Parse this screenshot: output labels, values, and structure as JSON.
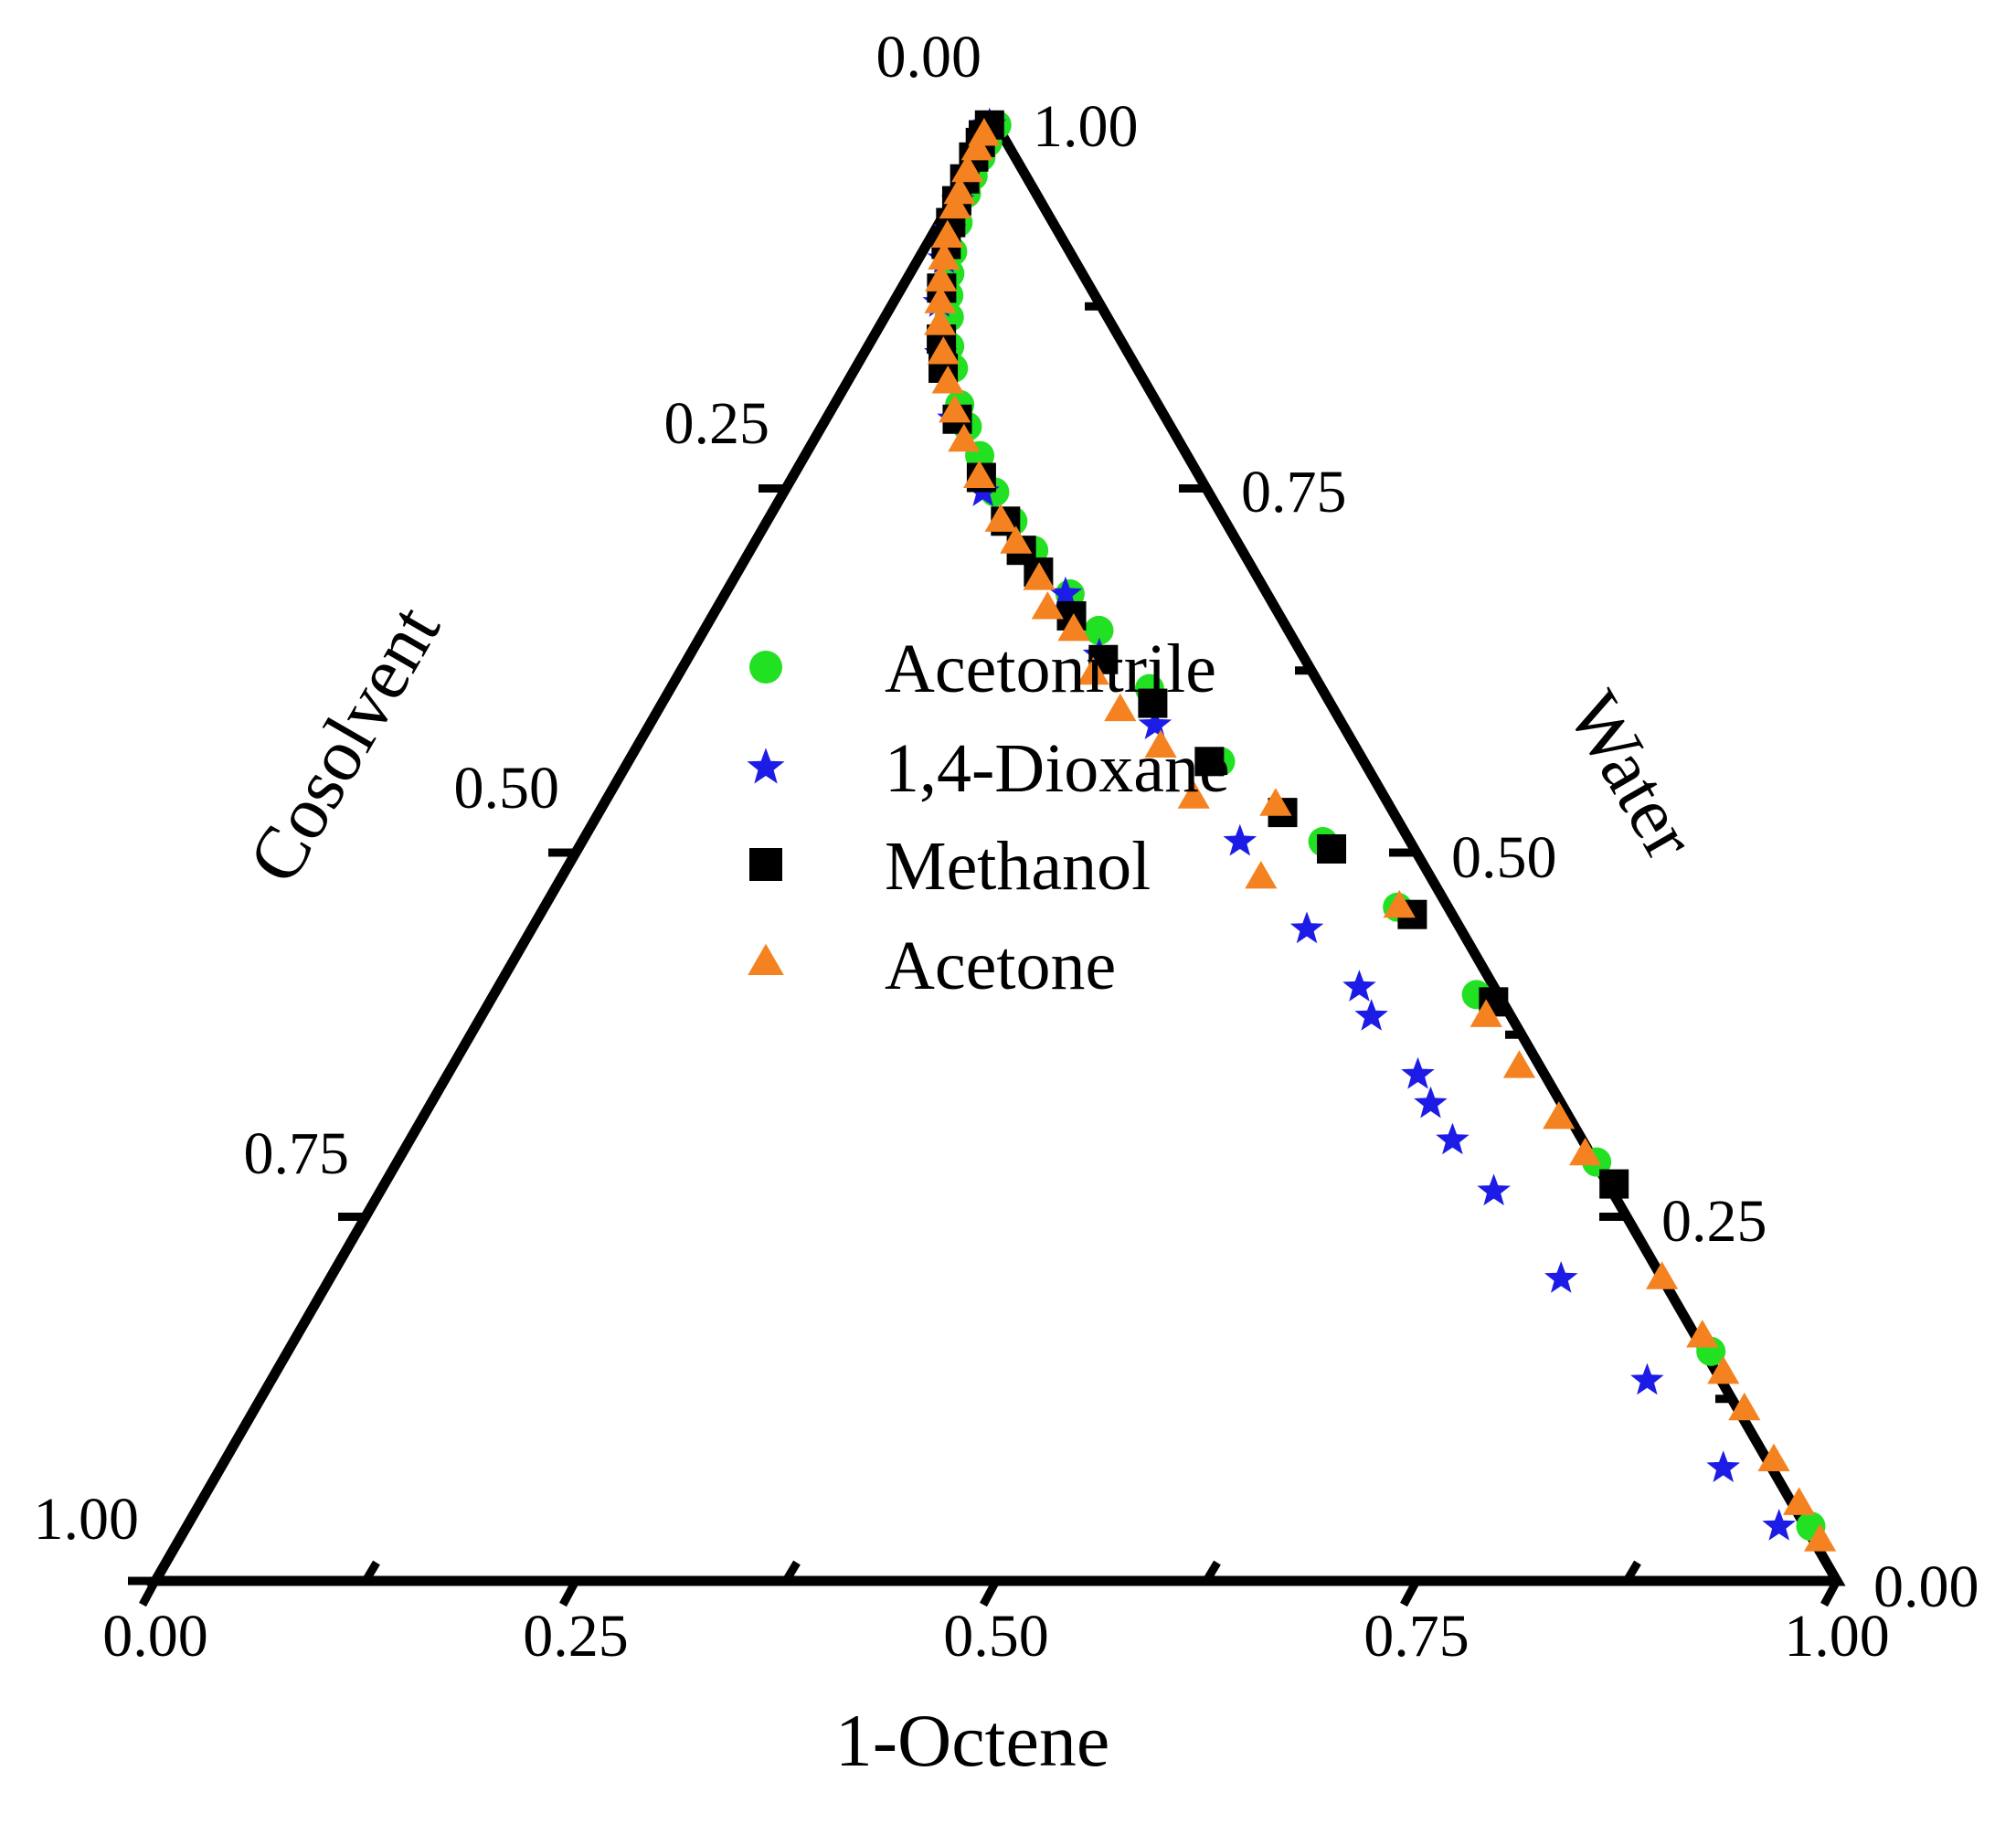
{
  "chart_data": {
    "type": "scatter",
    "subtype": "ternary",
    "title": "",
    "axes": {
      "bottom": {
        "label": "1-Octene",
        "ticks": [
          "0.00",
          "0.25",
          "0.50",
          "0.75",
          "1.00"
        ]
      },
      "left": {
        "label": "Cosolvent",
        "ticks": [
          "0.00",
          "0.25",
          "0.50",
          "0.75",
          "1.00"
        ]
      },
      "right": {
        "label": "Water",
        "ticks": [
          "1.00",
          "0.75",
          "0.50",
          "0.25",
          "0.00"
        ]
      }
    },
    "legend_position": "center",
    "series": [
      {
        "name": "Acetonitrile",
        "marker": "circle",
        "color": "#22e022",
        "points": [
          [
            0.008,
            0.008
          ],
          [
            0.02,
            0.03
          ],
          [
            0.03,
            0.054
          ],
          [
            0.043,
            0.08
          ],
          [
            0.055,
            0.1
          ],
          [
            0.075,
            0.14
          ],
          [
            0.095,
            0.182
          ],
          [
            0.11,
            0.21
          ],
          [
            0.125,
            0.24
          ],
          [
            0.14,
            0.27
          ],
          [
            0.16,
            0.3
          ],
          [
            0.175,
            0.33
          ],
          [
            0.2,
            0.37
          ],
          [
            0.215,
            0.4
          ],
          [
            0.235,
            0.44
          ],
          [
            0.26,
            0.48
          ],
          [
            0.28,
            0.52
          ],
          [
            0.3,
            0.56
          ],
          [
            0.33,
            0.62
          ],
          [
            0.355,
            0.66
          ],
          [
            0.395,
            0.72
          ],
          [
            0.445,
            0.79
          ],
          [
            0.5,
            0.88
          ],
          [
            0.545,
            0.93
          ],
          [
            0.605,
            0.965
          ],
          [
            0.72,
            0.99
          ],
          [
            0.85,
            0.995
          ],
          [
            0.97,
            0.995
          ]
        ]
      },
      {
        "name": "1,4-Dioxane",
        "marker": "star",
        "color": "#1c1ce6",
        "points": [
          [
            0.008,
            0.01
          ],
          [
            0.015,
            0.03
          ],
          [
            0.025,
            0.055
          ],
          [
            0.04,
            0.08
          ],
          [
            0.06,
            0.12
          ],
          [
            0.08,
            0.155
          ],
          [
            0.1,
            0.19
          ],
          [
            0.13,
            0.24
          ],
          [
            0.165,
            0.3
          ],
          [
            0.21,
            0.38
          ],
          [
            0.26,
            0.47
          ],
          [
            0.33,
            0.625
          ],
          [
            0.372,
            0.665
          ],
          [
            0.42,
            0.725
          ],
          [
            0.5,
            0.79
          ],
          [
            0.56,
            0.83
          ],
          [
            0.6,
            0.86
          ],
          [
            0.62,
            0.86
          ],
          [
            0.66,
            0.88
          ],
          [
            0.68,
            0.88
          ],
          [
            0.705,
            0.885
          ],
          [
            0.74,
            0.9
          ],
          [
            0.8,
            0.92
          ],
          [
            0.87,
            0.945
          ],
          [
            0.93,
            0.965
          ],
          [
            0.97,
            0.98
          ]
        ]
      },
      {
        "name": "Methanol",
        "marker": "square",
        "color": "#000000",
        "points": [
          [
            0.008,
            0.01
          ],
          [
            0.02,
            0.03
          ],
          [
            0.03,
            0.055
          ],
          [
            0.045,
            0.085
          ],
          [
            0.06,
            0.11
          ],
          [
            0.075,
            0.14
          ],
          [
            0.09,
            0.17
          ],
          [
            0.12,
            0.23
          ],
          [
            0.155,
            0.29
          ],
          [
            0.175,
            0.32
          ],
          [
            0.21,
            0.39
          ],
          [
            0.25,
            0.465
          ],
          [
            0.28,
            0.52
          ],
          [
            0.3,
            0.55
          ],
          [
            0.315,
            0.58
          ],
          [
            0.345,
            0.63
          ],
          [
            0.375,
            0.67
          ],
          [
            0.405,
            0.73
          ],
          [
            0.445,
            0.785
          ],
          [
            0.48,
            0.855
          ],
          [
            0.505,
            0.895
          ],
          [
            0.55,
            0.95
          ],
          [
            0.61,
            0.985
          ],
          [
            0.735,
            1.0
          ]
        ]
      },
      {
        "name": "Acetone",
        "marker": "triangle",
        "color": "#f58220",
        "points": [
          [
            0.015,
            0.025
          ],
          [
            0.025,
            0.05
          ],
          [
            0.04,
            0.075
          ],
          [
            0.055,
            0.105
          ],
          [
            0.065,
            0.125
          ],
          [
            0.085,
            0.16
          ],
          [
            0.1,
            0.19
          ],
          [
            0.115,
            0.215
          ],
          [
            0.13,
            0.245
          ],
          [
            0.145,
            0.27
          ],
          [
            0.165,
            0.31
          ],
          [
            0.185,
            0.345
          ],
          [
            0.205,
            0.38
          ],
          [
            0.225,
            0.415
          ],
          [
            0.25,
            0.46
          ],
          [
            0.28,
            0.51
          ],
          [
            0.295,
            0.54
          ],
          [
            0.32,
            0.58
          ],
          [
            0.34,
            0.59
          ],
          [
            0.355,
            0.63
          ],
          [
            0.385,
            0.65
          ],
          [
            0.41,
            0.68
          ],
          [
            0.435,
            0.725
          ],
          [
            0.47,
            0.75
          ],
          [
            0.475,
            0.85
          ],
          [
            0.525,
            0.8
          ],
          [
            0.545,
            0.94
          ],
          [
            0.62,
            0.97
          ],
          [
            0.655,
            0.975
          ],
          [
            0.69,
            0.985
          ],
          [
            0.715,
            0.99
          ],
          [
            0.8,
            0.995
          ],
          [
            0.84,
            1.0
          ],
          [
            0.865,
            1.0
          ],
          [
            0.89,
            1.0
          ],
          [
            0.925,
            1.0
          ],
          [
            0.955,
            1.0
          ],
          [
            0.98,
            1.0
          ]
        ]
      }
    ],
    "point_note": "points are [cosolvent fraction from apex to base, 1-octene fraction across base]"
  }
}
